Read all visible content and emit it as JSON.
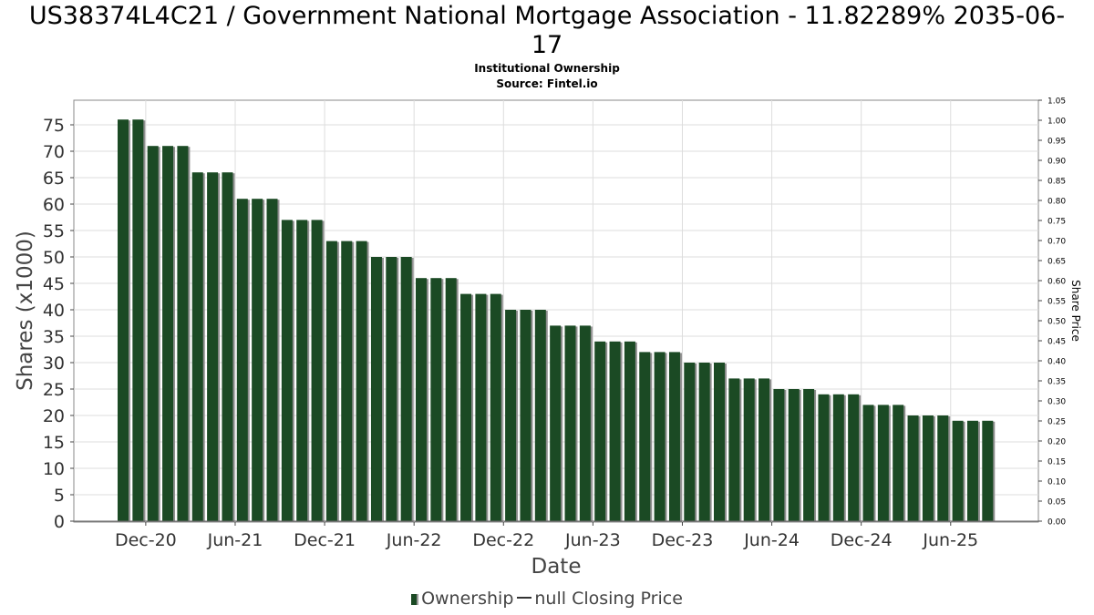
{
  "header": {
    "title_line1": "US38374L4C21 / Government National Mortgage Association - 11.82289% 2035-06-",
    "title_line2": "17",
    "subtitle_line1": "Institutional Ownership",
    "subtitle_line2": "Source: Fintel.io"
  },
  "legend": {
    "ownership_label": "Ownership",
    "price_label": "null Closing Price"
  },
  "colors": {
    "bar": "#1b4a24",
    "bar_shadow": "#8f8f8f",
    "grid": "#dddddd",
    "frame": "#888888"
  },
  "chart_data": {
    "type": "bar",
    "title": "US38374L4C21 / Government National Mortgage Association - 11.82289% 2035-06-17",
    "subtitle": "Institutional Ownership / Source: Fintel.io",
    "xlabel": "Date",
    "ylabel": "Shares (x1000)",
    "y2label": "Share Price",
    "ylim": [
      0,
      79
    ],
    "y2lim": [
      0,
      1.05
    ],
    "yticks": [
      0,
      5,
      10,
      15,
      20,
      25,
      30,
      35,
      40,
      45,
      50,
      55,
      60,
      65,
      70,
      75
    ],
    "y2ticks": [
      "0.00",
      "0.05",
      "0.10",
      "0.15",
      "0.20",
      "0.25",
      "0.30",
      "0.35",
      "0.40",
      "0.45",
      "0.50",
      "0.55",
      "0.60",
      "0.65",
      "0.70",
      "0.75",
      "0.80",
      "0.85",
      "0.90",
      "0.95",
      "1.00",
      "1.05"
    ],
    "xticks": [
      "Dec-20",
      "Jun-21",
      "Dec-21",
      "Jun-22",
      "Dec-22",
      "Jun-23",
      "Dec-23",
      "Jun-24",
      "Dec-24",
      "Jun-25"
    ],
    "grid": true,
    "legend_position": "bottom",
    "series": [
      {
        "name": "Ownership",
        "values": [
          76,
          76,
          71,
          71,
          71,
          66,
          66,
          66,
          61,
          61,
          61,
          57,
          57,
          57,
          53,
          53,
          53,
          50,
          50,
          50,
          46,
          46,
          46,
          43,
          43,
          43,
          40,
          40,
          40,
          37,
          37,
          37,
          34,
          34,
          34,
          32,
          32,
          32,
          30,
          30,
          30,
          27,
          27,
          27,
          25,
          25,
          25,
          24,
          24,
          24,
          22,
          22,
          22,
          20,
          20,
          20,
          19,
          19,
          19
        ]
      }
    ]
  }
}
